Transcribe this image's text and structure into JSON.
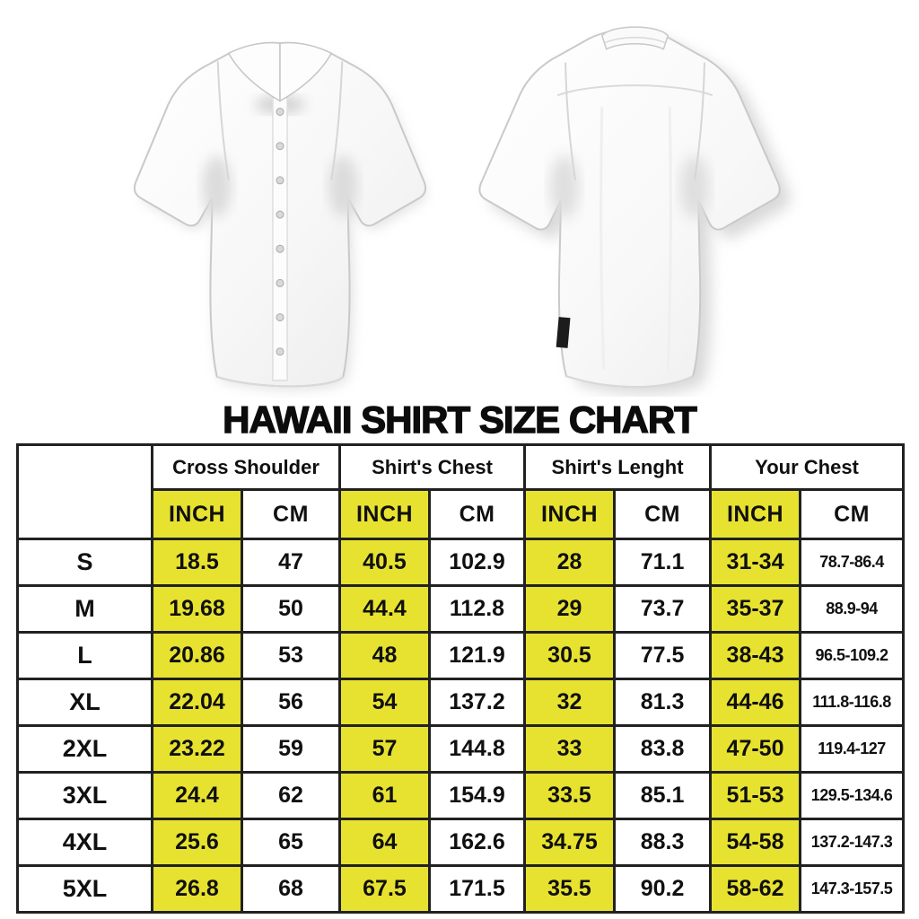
{
  "title": "HAWAII SHIRT SIZE CHART",
  "colors": {
    "highlight_yellow": "#e7e230",
    "table_border": "#212121",
    "text": "#101010"
  },
  "images": {
    "front_shirt_alt": "white short-sleeve button-up shirt, front view",
    "back_shirt_alt": "white short-sleeve shirt, back view with hem tag"
  },
  "table": {
    "group_headers": [
      "Cross Shoulder",
      "Shirt's Chest",
      "Shirt's Lenght",
      "Your Chest"
    ],
    "unit_headers": [
      "INCH",
      "CM",
      "INCH",
      "CM",
      "INCH",
      "CM",
      "INCH",
      "CM"
    ],
    "rows": [
      {
        "size": "S",
        "values": [
          "18.5",
          "47",
          "40.5",
          "102.9",
          "28",
          "71.1",
          "31-34",
          "78.7-86.4"
        ]
      },
      {
        "size": "M",
        "values": [
          "19.68",
          "50",
          "44.4",
          "112.8",
          "29",
          "73.7",
          "35-37",
          "88.9-94"
        ]
      },
      {
        "size": "L",
        "values": [
          "20.86",
          "53",
          "48",
          "121.9",
          "30.5",
          "77.5",
          "38-43",
          "96.5-109.2"
        ]
      },
      {
        "size": "XL",
        "values": [
          "22.04",
          "56",
          "54",
          "137.2",
          "32",
          "81.3",
          "44-46",
          "111.8-116.8"
        ]
      },
      {
        "size": "2XL",
        "values": [
          "23.22",
          "59",
          "57",
          "144.8",
          "33",
          "83.8",
          "47-50",
          "119.4-127"
        ]
      },
      {
        "size": "3XL",
        "values": [
          "24.4",
          "62",
          "61",
          "154.9",
          "33.5",
          "85.1",
          "51-53",
          "129.5-134.6"
        ]
      },
      {
        "size": "4XL",
        "values": [
          "25.6",
          "65",
          "64",
          "162.6",
          "34.75",
          "88.3",
          "54-58",
          "137.2-147.3"
        ]
      },
      {
        "size": "5XL",
        "values": [
          "26.8",
          "68",
          "67.5",
          "171.5",
          "35.5",
          "90.2",
          "58-62",
          "147.3-157.5"
        ]
      }
    ]
  }
}
